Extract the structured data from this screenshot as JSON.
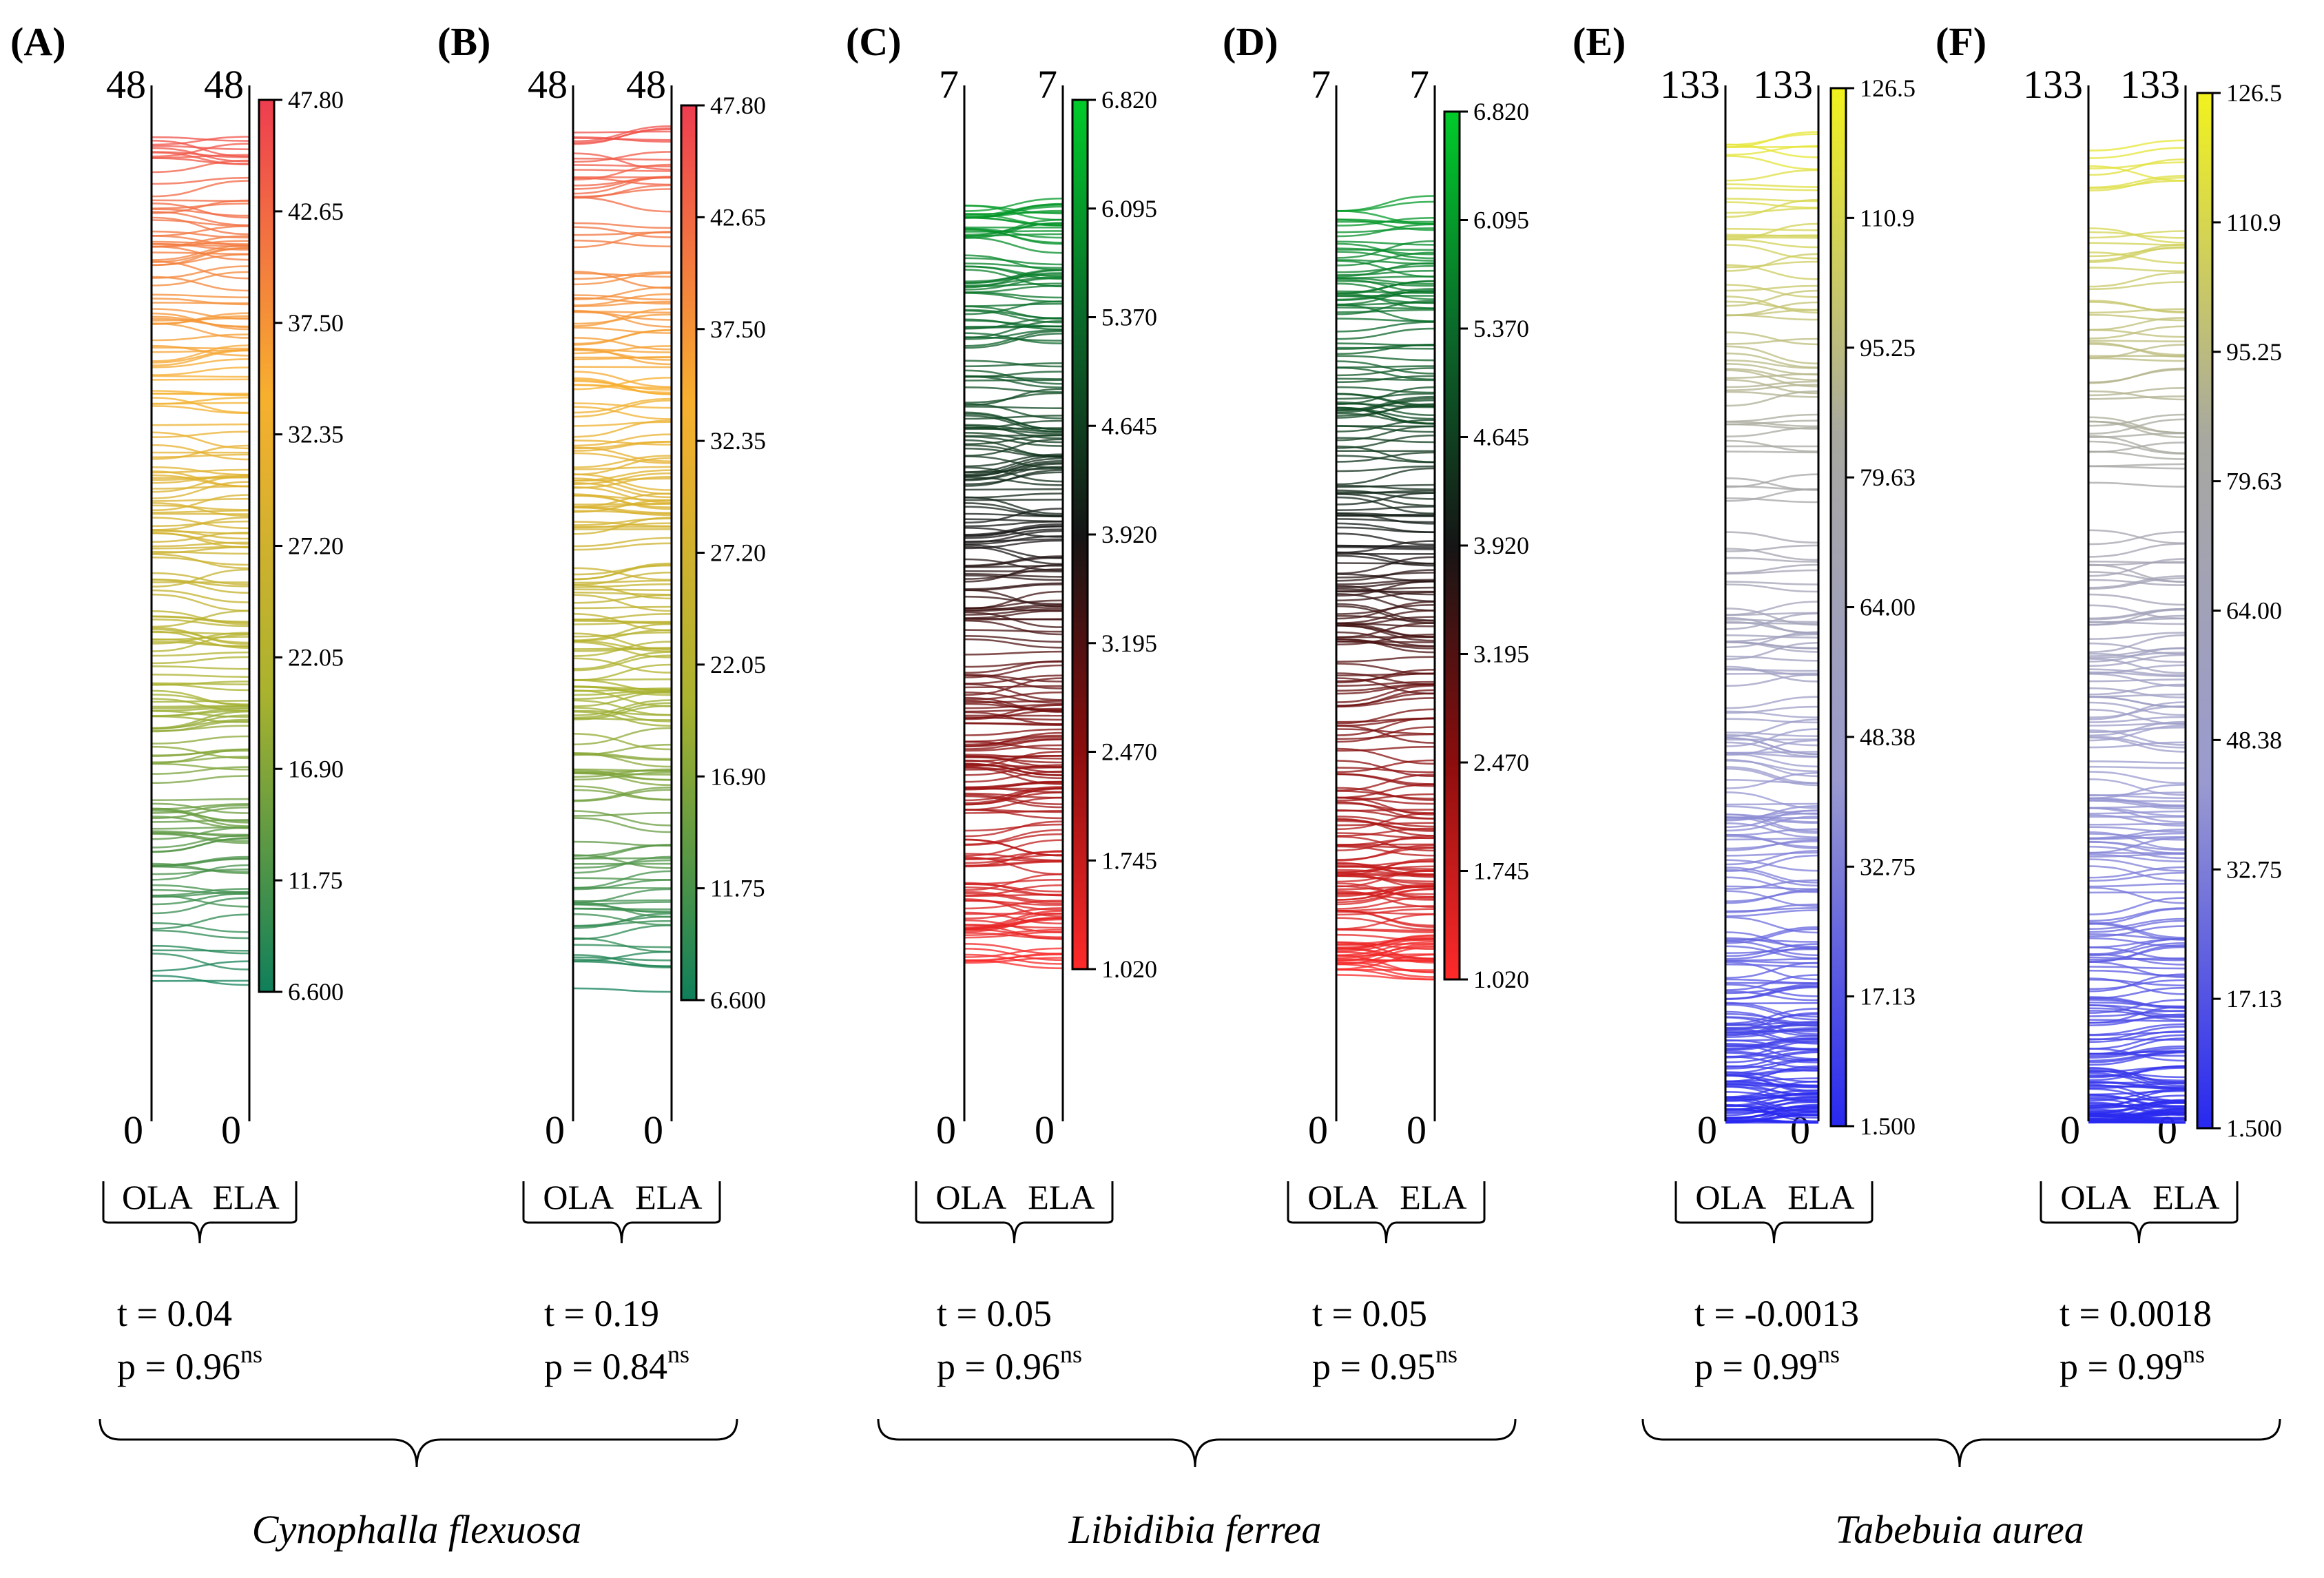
{
  "chart_data": [
    {
      "type": "parallel-coordinates",
      "panel": "(A)",
      "axes": [
        "OLA",
        "ELA"
      ],
      "axis_top_labels": [
        "48",
        "48"
      ],
      "axis_bottom_labels": [
        "0",
        "0"
      ],
      "ylim": [
        0,
        48
      ],
      "colorbar_ticks": [
        "47.80",
        "42.65",
        "37.50",
        "32.35",
        "27.20",
        "22.05",
        "16.90",
        "11.75",
        "6.600"
      ],
      "colorbar_range": [
        6.6,
        47.8
      ],
      "colors": [
        "#ee3d50",
        "#f7b02e",
        "#a9b22e",
        "#0f7f5a"
      ],
      "t_stat": "t = 0.04",
      "p_prefix": "p = 0.96",
      "p_sup": "ns"
    },
    {
      "type": "parallel-coordinates",
      "panel": "(B)",
      "axes": [
        "OLA",
        "ELA"
      ],
      "axis_top_labels": [
        "48",
        "48"
      ],
      "axis_bottom_labels": [
        "0",
        "0"
      ],
      "ylim": [
        0,
        48
      ],
      "colorbar_ticks": [
        "47.80",
        "42.65",
        "37.50",
        "32.35",
        "27.20",
        "22.05",
        "16.90",
        "11.75",
        "6.600"
      ],
      "colorbar_range": [
        6.6,
        47.8
      ],
      "colors": [
        "#ee3d50",
        "#f7b02e",
        "#a9b22e",
        "#0f7f5a"
      ],
      "t_stat": "t = 0.19",
      "p_prefix": "p = 0.84",
      "p_sup": "ns"
    },
    {
      "type": "parallel-coordinates",
      "panel": "(C)",
      "axes": [
        "OLA",
        "ELA"
      ],
      "axis_top_labels": [
        "7",
        "7"
      ],
      "axis_bottom_labels": [
        "0",
        "0"
      ],
      "ylim": [
        0,
        7
      ],
      "colorbar_ticks": [
        "6.820",
        "6.095",
        "5.370",
        "4.645",
        "3.920",
        "3.195",
        "2.470",
        "1.745",
        "1.020"
      ],
      "colorbar_range": [
        1.02,
        6.82
      ],
      "colors": [
        "#00cc2a",
        "#0a6a2a",
        "#151515",
        "#8c0d0d",
        "#ff2a2a"
      ],
      "t_stat": "t = 0.05",
      "p_prefix": "p = 0.96",
      "p_sup": "ns"
    },
    {
      "type": "parallel-coordinates",
      "panel": "(D)",
      "axes": [
        "OLA",
        "ELA"
      ],
      "axis_top_labels": [
        "7",
        "7"
      ],
      "axis_bottom_labels": [
        "0",
        "0"
      ],
      "ylim": [
        0,
        7
      ],
      "colorbar_ticks": [
        "6.820",
        "6.095",
        "5.370",
        "4.645",
        "3.920",
        "3.195",
        "2.470",
        "1.745",
        "1.020"
      ],
      "colorbar_range": [
        1.02,
        6.82
      ],
      "colors": [
        "#00cc2a",
        "#0a6a2a",
        "#151515",
        "#8c0d0d",
        "#ff2a2a"
      ],
      "t_stat": "t = 0.05",
      "p_prefix": "p = 0.95",
      "p_sup": "ns"
    },
    {
      "type": "parallel-coordinates",
      "panel": "(E)",
      "axes": [
        "OLA",
        "ELA"
      ],
      "axis_top_labels": [
        "133",
        "133"
      ],
      "axis_bottom_labels": [
        "0",
        "0"
      ],
      "ylim": [
        0,
        133
      ],
      "colorbar_ticks": [
        "126.5",
        "110.9",
        "95.25",
        "79.63",
        "64.00",
        "48.38",
        "32.75",
        "17.13",
        "1.500"
      ],
      "colorbar_range": [
        1.5,
        126.5
      ],
      "colors": [
        "#f2f21e",
        "#a8a8a0",
        "#9a9ad0",
        "#2828f0"
      ],
      "t_stat": "t = -0.0013",
      "p_prefix": "p = 0.99",
      "p_sup": "ns"
    },
    {
      "type": "parallel-coordinates",
      "panel": "(F)",
      "axes": [
        "OLA",
        "ELA"
      ],
      "axis_top_labels": [
        "133",
        "133"
      ],
      "axis_bottom_labels": [
        "0",
        "0"
      ],
      "ylim": [
        0,
        133
      ],
      "colorbar_ticks": [
        "126.5",
        "110.9",
        "95.25",
        "79.63",
        "64.00",
        "48.38",
        "32.75",
        "17.13",
        "1.500"
      ],
      "colorbar_range": [
        1.5,
        126.5
      ],
      "colors": [
        "#f2f21e",
        "#a8a8a0",
        "#9a9ad0",
        "#2828f0"
      ],
      "t_stat": "t = 0.0018",
      "p_prefix": "p = 0.99",
      "p_sup": "ns"
    }
  ],
  "species": [
    "Cynophalla flexuosa",
    "Libidibia ferrea",
    "Tabebuia aurea"
  ]
}
